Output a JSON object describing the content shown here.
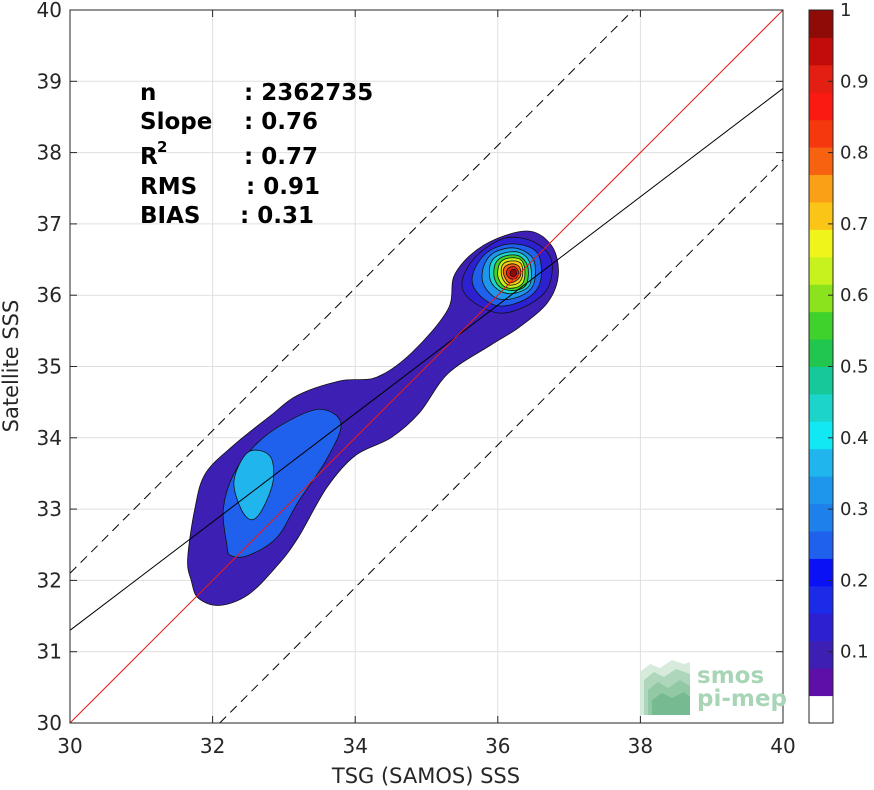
{
  "chart_data": {
    "type": "heatmap",
    "title": "",
    "xlabel": "TSG (SAMOS) SSS",
    "ylabel": "Satellite SSS",
    "xlim": [
      30,
      40
    ],
    "ylim": [
      30,
      40
    ],
    "x_ticks": [
      "30",
      "32",
      "34",
      "36",
      "38",
      "40"
    ],
    "y_ticks": [
      "30",
      "31",
      "32",
      "33",
      "34",
      "35",
      "36",
      "37",
      "38",
      "39",
      "40"
    ],
    "grid": true,
    "stats": [
      {
        "label": "n",
        "value": ": 2362735"
      },
      {
        "label": "Slope",
        "value": ": 0.76"
      },
      {
        "label": "R",
        "sup": "2",
        "value": ": 0.77"
      },
      {
        "label": "RMS",
        "value": ": 0.91"
      },
      {
        "label": "BIAS",
        "value": ": 0.31"
      }
    ],
    "reference_lines": {
      "identity": {
        "slope": 1,
        "intercept": 0,
        "color": "#e41a1c"
      },
      "regression": {
        "slope": 0.76,
        "intercept": 8.5,
        "color": "#000000"
      },
      "offset_bounds": {
        "offset": 2.1,
        "style": "dashed",
        "color": "#000000"
      }
    },
    "density_contours": [
      {
        "level": 0.05,
        "color": "#3d1fb3",
        "points": [
          [
            31.7,
            32.0
          ],
          [
            31.65,
            32.3
          ],
          [
            31.75,
            33.0
          ],
          [
            31.9,
            33.5
          ],
          [
            32.3,
            33.9
          ],
          [
            32.8,
            34.3
          ],
          [
            33.2,
            34.6
          ],
          [
            33.8,
            34.8
          ],
          [
            34.3,
            34.85
          ],
          [
            34.8,
            35.2
          ],
          [
            35.3,
            35.8
          ],
          [
            35.4,
            36.3
          ],
          [
            35.8,
            36.7
          ],
          [
            36.4,
            36.9
          ],
          [
            36.75,
            36.7
          ],
          [
            36.85,
            36.3
          ],
          [
            36.7,
            35.9
          ],
          [
            36.3,
            35.55
          ],
          [
            35.9,
            35.3
          ],
          [
            35.3,
            34.9
          ],
          [
            34.9,
            34.35
          ],
          [
            34.5,
            34.0
          ],
          [
            34.0,
            33.75
          ],
          [
            33.6,
            33.3
          ],
          [
            33.2,
            32.6
          ],
          [
            32.9,
            32.2
          ],
          [
            32.5,
            31.8
          ],
          [
            32.1,
            31.65
          ],
          [
            31.8,
            31.75
          ]
        ]
      },
      {
        "level": 0.2,
        "color": "#1f60ed",
        "points": [
          [
            32.2,
            32.5
          ],
          [
            32.15,
            33.0
          ],
          [
            32.3,
            33.5
          ],
          [
            32.6,
            33.9
          ],
          [
            33.0,
            34.2
          ],
          [
            33.5,
            34.4
          ],
          [
            33.8,
            34.2
          ],
          [
            33.6,
            33.7
          ],
          [
            33.2,
            33.1
          ],
          [
            32.9,
            32.6
          ],
          [
            32.5,
            32.35
          ],
          [
            32.25,
            32.35
          ]
        ]
      },
      {
        "level": 0.35,
        "color": "#21b5ee",
        "points": [
          [
            32.4,
            33.0
          ],
          [
            32.3,
            33.4
          ],
          [
            32.5,
            33.8
          ],
          [
            32.8,
            33.75
          ],
          [
            32.85,
            33.4
          ],
          [
            32.7,
            33.0
          ],
          [
            32.55,
            32.85
          ]
        ]
      },
      {
        "level": 0.1,
        "color": "#2c20d0",
        "points": [
          [
            35.6,
            35.95
          ],
          [
            35.5,
            36.2
          ],
          [
            35.7,
            36.55
          ],
          [
            36.1,
            36.8
          ],
          [
            36.5,
            36.75
          ],
          [
            36.75,
            36.5
          ],
          [
            36.7,
            36.1
          ],
          [
            36.4,
            35.85
          ],
          [
            36.0,
            35.75
          ]
        ]
      },
      {
        "level": 0.2,
        "color": "#1f60ed",
        "points": [
          [
            35.7,
            36.05
          ],
          [
            35.65,
            36.3
          ],
          [
            35.85,
            36.6
          ],
          [
            36.2,
            36.72
          ],
          [
            36.55,
            36.6
          ],
          [
            36.6,
            36.2
          ],
          [
            36.4,
            35.95
          ],
          [
            36.0,
            35.85
          ]
        ]
      },
      {
        "level": 0.3,
        "color": "#1e96ec",
        "points": [
          [
            35.8,
            36.15
          ],
          [
            35.8,
            36.4
          ],
          [
            35.95,
            36.6
          ],
          [
            36.25,
            36.66
          ],
          [
            36.5,
            36.5
          ],
          [
            36.5,
            36.15
          ],
          [
            36.3,
            35.98
          ],
          [
            36.0,
            35.95
          ]
        ]
      },
      {
        "level": 0.4,
        "color": "#1dd4cb",
        "points": [
          [
            35.9,
            36.2
          ],
          [
            35.9,
            36.45
          ],
          [
            36.05,
            36.58
          ],
          [
            36.3,
            36.6
          ],
          [
            36.45,
            36.45
          ],
          [
            36.45,
            36.15
          ],
          [
            36.25,
            36.03
          ],
          [
            36.05,
            36.05
          ]
        ]
      },
      {
        "level": 0.5,
        "color": "#3fd12c",
        "points": [
          [
            35.95,
            36.25
          ],
          [
            35.97,
            36.45
          ],
          [
            36.1,
            36.55
          ],
          [
            36.3,
            36.55
          ],
          [
            36.42,
            36.4
          ],
          [
            36.4,
            36.15
          ],
          [
            36.25,
            36.07
          ],
          [
            36.05,
            36.1
          ]
        ]
      },
      {
        "level": 0.6,
        "color": "#c8f21e",
        "points": [
          [
            36.0,
            36.27
          ],
          [
            36.03,
            36.45
          ],
          [
            36.15,
            36.52
          ],
          [
            36.32,
            36.5
          ],
          [
            36.38,
            36.35
          ],
          [
            36.35,
            36.17
          ],
          [
            36.22,
            36.1
          ],
          [
            36.08,
            36.13
          ]
        ]
      },
      {
        "level": 0.7,
        "color": "#fac516",
        "points": [
          [
            36.05,
            36.3
          ],
          [
            36.07,
            36.43
          ],
          [
            36.18,
            36.48
          ],
          [
            36.32,
            36.45
          ],
          [
            36.35,
            36.3
          ],
          [
            36.3,
            36.18
          ],
          [
            36.18,
            36.14
          ],
          [
            36.1,
            36.18
          ]
        ]
      },
      {
        "level": 0.8,
        "color": "#f76211",
        "points": [
          [
            36.08,
            36.3
          ],
          [
            36.1,
            36.4
          ],
          [
            36.2,
            36.44
          ],
          [
            36.3,
            36.4
          ],
          [
            36.32,
            36.28
          ],
          [
            36.25,
            36.2
          ],
          [
            36.15,
            36.18
          ]
        ]
      },
      {
        "level": 0.9,
        "color": "#e21f12",
        "points": [
          [
            36.12,
            36.3
          ],
          [
            36.15,
            36.38
          ],
          [
            36.23,
            36.4
          ],
          [
            36.29,
            36.33
          ],
          [
            36.26,
            36.24
          ],
          [
            36.18,
            36.23
          ]
        ]
      },
      {
        "level": 1.0,
        "color": "#8f0b07",
        "points": [
          [
            36.17,
            36.3
          ],
          [
            36.2,
            36.36
          ],
          [
            36.25,
            36.35
          ],
          [
            36.26,
            36.29
          ],
          [
            36.21,
            36.26
          ]
        ]
      }
    ],
    "colorbar": {
      "range": [
        0,
        1
      ],
      "tick_labels": [
        "0.1",
        "0.2",
        "0.3",
        "0.4",
        "0.5",
        "0.6",
        "0.7",
        "0.8",
        "0.9",
        "1"
      ],
      "colors": [
        "#ffffff",
        "#5e0fa8",
        "#3d1fb3",
        "#2c20d0",
        "#1b2be8",
        "#0b11f5",
        "#1f60ed",
        "#1e80ea",
        "#1e96ec",
        "#21b5ee",
        "#12e8f4",
        "#1dd4cb",
        "#15c99a",
        "#20c64e",
        "#3fd12c",
        "#8be31d",
        "#c8f21e",
        "#eff51b",
        "#fac516",
        "#f9a016",
        "#f76211",
        "#f5380e",
        "#fa1a11",
        "#e21f12",
        "#c20c0a",
        "#8f0b07"
      ]
    },
    "logo": {
      "line1": "smos",
      "line2": "pi-mep",
      "color": "#a9d5b7"
    }
  }
}
